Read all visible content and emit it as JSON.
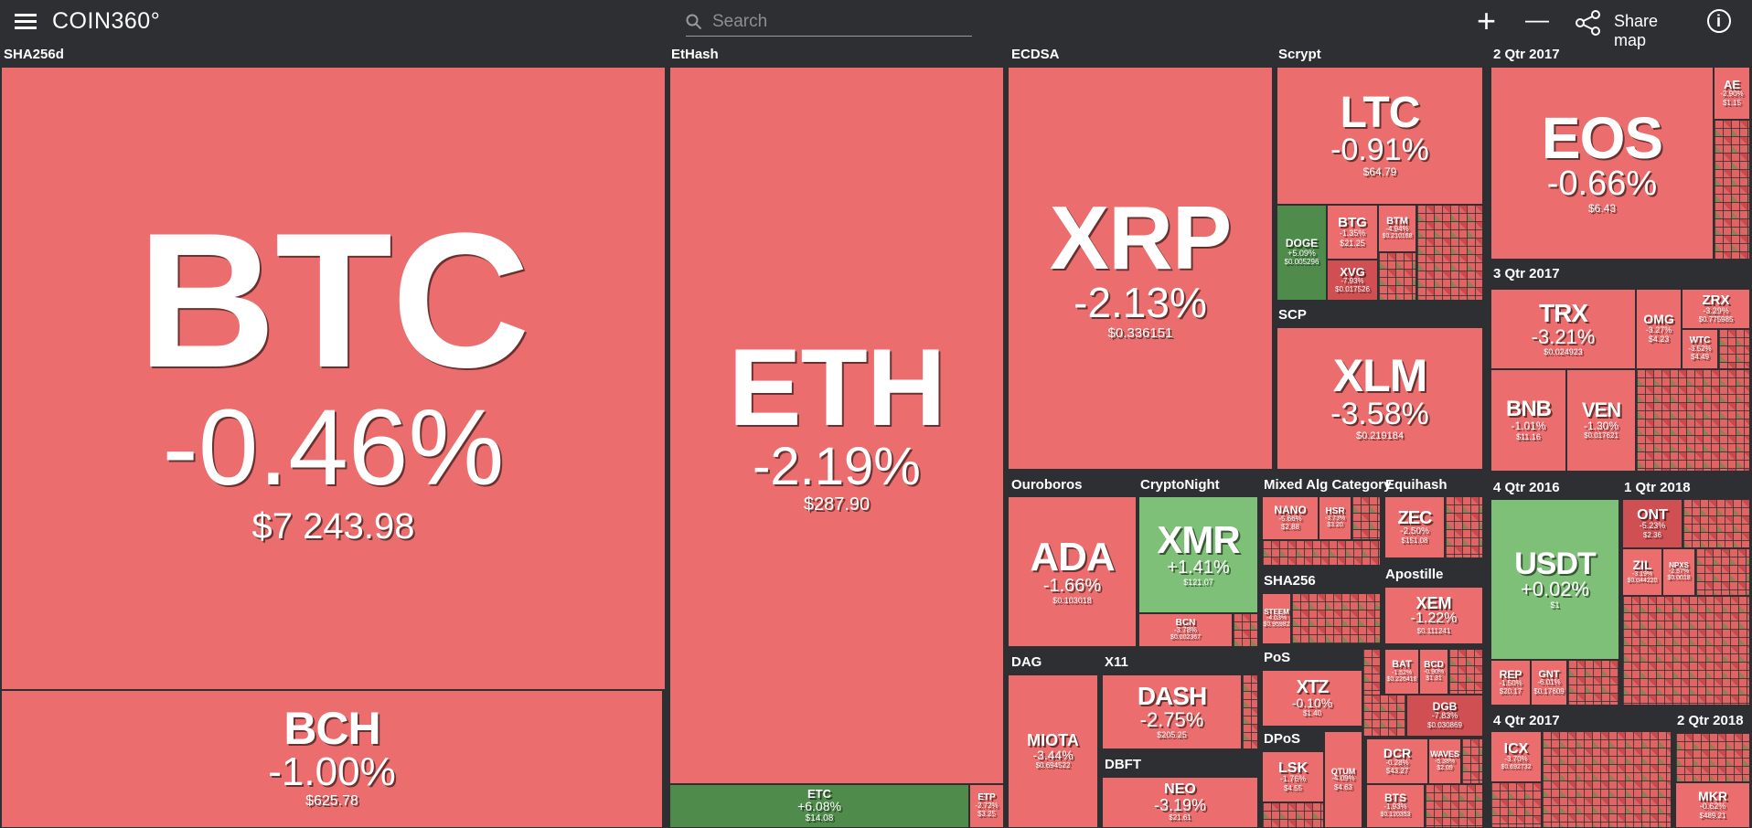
{
  "app": {
    "title": "COIN360°"
  },
  "search": {
    "placeholder": "Search"
  },
  "toolbar": {
    "zoom_in": "+",
    "zoom_out": "—",
    "share_label": "Share map",
    "info": "i"
  },
  "categories": {
    "sha256d": "SHA256d",
    "ethash": "EtHash",
    "ecdsa": "ECDSA",
    "scrypt": "Scrypt",
    "q2_2017": "2 Qtr 2017",
    "scp": "SCP",
    "q3_2017": "3 Qtr 2017",
    "ouroboros": "Ouroboros",
    "cryptonight": "CryptoNight",
    "mixed": "Mixed Alg Category",
    "equihash": "Equihash",
    "q4_2016": "4 Qtr 2016",
    "q1_2018": "1 Qtr 2018",
    "sha256": "SHA256",
    "apostille": "Apostille",
    "dag": "DAG",
    "x11": "X11",
    "pos": "PoS",
    "dbft": "DBFT",
    "dpos": "DPoS",
    "q4_2017": "4 Qtr 2017",
    "q2_2018": "2 Qtr 2018"
  },
  "coins": {
    "btc": {
      "symbol": "BTC",
      "change": "-0.46%",
      "price": "$7 243.98"
    },
    "bch": {
      "symbol": "BCH",
      "change": "-1.00%",
      "price": "$625.78"
    },
    "eth": {
      "symbol": "ETH",
      "change": "-2.19%",
      "price": "$287.90"
    },
    "etc": {
      "symbol": "ETC",
      "change": "+6.08%",
      "price": "$14.08"
    },
    "etp": {
      "symbol": "ETP",
      "change": "-2.72%",
      "price": "$3.25"
    },
    "xrp": {
      "symbol": "XRP",
      "change": "-2.13%",
      "price": "$0.336151"
    },
    "ltc": {
      "symbol": "LTC",
      "change": "-0.91%",
      "price": "$64.79"
    },
    "doge": {
      "symbol": "DOGE",
      "change": "+5.09%",
      "price": "$0.005296"
    },
    "btg": {
      "symbol": "BTG",
      "change": "-1.35%",
      "price": "$21.25"
    },
    "xvg": {
      "symbol": "XVG",
      "change": "-7.93%",
      "price": "$0.017526"
    },
    "btm": {
      "symbol": "BTM",
      "change": "-4.94%",
      "price": "$0.210168"
    },
    "xlm": {
      "symbol": "XLM",
      "change": "-3.58%",
      "price": "$0.219184"
    },
    "eos": {
      "symbol": "EOS",
      "change": "-0.66%",
      "price": "$6.43"
    },
    "ae": {
      "symbol": "AE",
      "change": "-2.90%",
      "price": "$1.15"
    },
    "trx": {
      "symbol": "TRX",
      "change": "-3.21%",
      "price": "$0.024923"
    },
    "omg": {
      "symbol": "OMG",
      "change": "-3.27%",
      "price": "$4.23"
    },
    "zrx": {
      "symbol": "ZRX",
      "change": "-3.29%",
      "price": "$0.775985"
    },
    "wtc": {
      "symbol": "WTC",
      "change": "-3.52%",
      "price": "$4.49"
    },
    "bnb": {
      "symbol": "BNB",
      "change": "-1.01%",
      "price": "$11.16"
    },
    "ven": {
      "symbol": "VEN",
      "change": "-1.30%",
      "price": "$0.017621"
    },
    "ada": {
      "symbol": "ADA",
      "change": "-1.66%",
      "price": "$0.103018"
    },
    "xmr": {
      "symbol": "XMR",
      "change": "+1.41%",
      "price": "$121.07"
    },
    "bcn": {
      "symbol": "BCN",
      "change": "-3.78%",
      "price": "$0.002367"
    },
    "nano": {
      "symbol": "NANO",
      "change": "-5.66%",
      "price": "$2.88"
    },
    "hsr": {
      "symbol": "HSR",
      "change": "-3.73%",
      "price": "$3.20"
    },
    "zec": {
      "symbol": "ZEC",
      "change": "-2.50%",
      "price": "$151.08"
    },
    "usdt": {
      "symbol": "USDT",
      "change": "+0.02%",
      "price": "$1"
    },
    "ont": {
      "symbol": "ONT",
      "change": "-5.23%",
      "price": "$2.36"
    },
    "zil": {
      "symbol": "ZIL",
      "change": "-3.19%",
      "price": "$0.044220"
    },
    "npxs": {
      "symbol": "NPXS",
      "change": "-2.57%",
      "price": "$0.0018"
    },
    "steem": {
      "symbol": "STEEM",
      "change": "-4.03%",
      "price": "$0.95982"
    },
    "xem": {
      "symbol": "XEM",
      "change": "-1.22%",
      "price": "$0.111241"
    },
    "rep": {
      "symbol": "REP",
      "change": "-1.50%",
      "price": "$20.17"
    },
    "gnt": {
      "symbol": "GNT",
      "change": "-6.01%",
      "price": "$0.17609"
    },
    "miota": {
      "symbol": "MIOTA",
      "change": "-3.44%",
      "price": "$0.694522"
    },
    "dash": {
      "symbol": "DASH",
      "change": "-2.75%",
      "price": "$205.25"
    },
    "xtz": {
      "symbol": "XTZ",
      "change": "-0.10%",
      "price": "$1.40"
    },
    "bat": {
      "symbol": "BAT",
      "change": "-1.52%",
      "price": "$0.226416"
    },
    "bcd": {
      "symbol": "BCD",
      "change": "-0.90%",
      "price": "$1.31"
    },
    "dgb": {
      "symbol": "DGB",
      "change": "-7.83%",
      "price": "$0.030869"
    },
    "neo": {
      "symbol": "NEO",
      "change": "-3.19%",
      "price": "$21.61"
    },
    "lsk": {
      "symbol": "LSK",
      "change": "-1.76%",
      "price": "$4.55"
    },
    "qtum": {
      "symbol": "QTUM",
      "change": "-4.09%",
      "price": "$4.63"
    },
    "dcr": {
      "symbol": "DCR",
      "change": "-0.28%",
      "price": "$43.27"
    },
    "waves": {
      "symbol": "WAVES",
      "change": "-5.38%",
      "price": "$2.09"
    },
    "bts": {
      "symbol": "BTS",
      "change": "-1.93%",
      "price": "$0.120353"
    },
    "icx": {
      "symbol": "ICX",
      "change": "-3.70%",
      "price": "$0.692732"
    },
    "mkr": {
      "symbol": "MKR",
      "change": "-0.62%",
      "price": "$489.21"
    }
  }
}
